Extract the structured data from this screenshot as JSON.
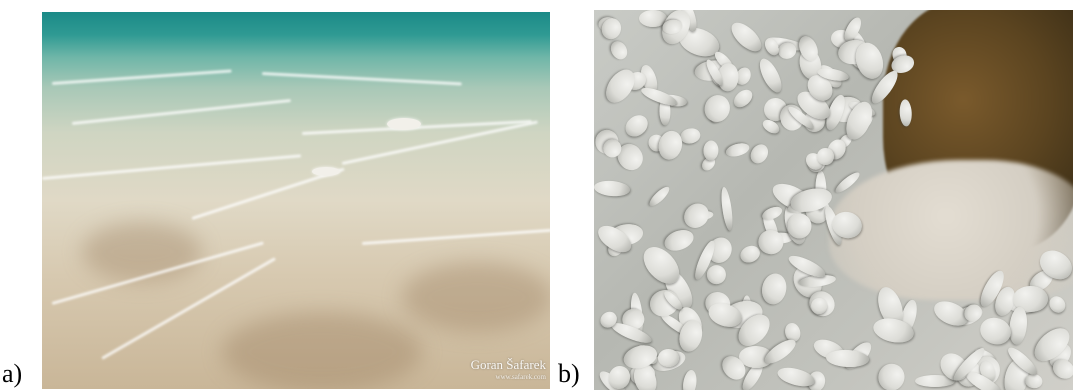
{
  "labels": {
    "panel_a": "a)",
    "panel_b": "b)"
  },
  "photo_a": {
    "description_icon": "underwater-sand-photo",
    "watermark_name": "Goran Šafarek",
    "watermark_url": "www.safarek.com"
  },
  "photo_b": {
    "description_icon": "underwater-pebbles-photo"
  },
  "colors": {
    "water_teal": "#1b8a87",
    "sand": "#e0d9c6",
    "pebble": "#dcdcd7",
    "rock": "#5b4420"
  }
}
